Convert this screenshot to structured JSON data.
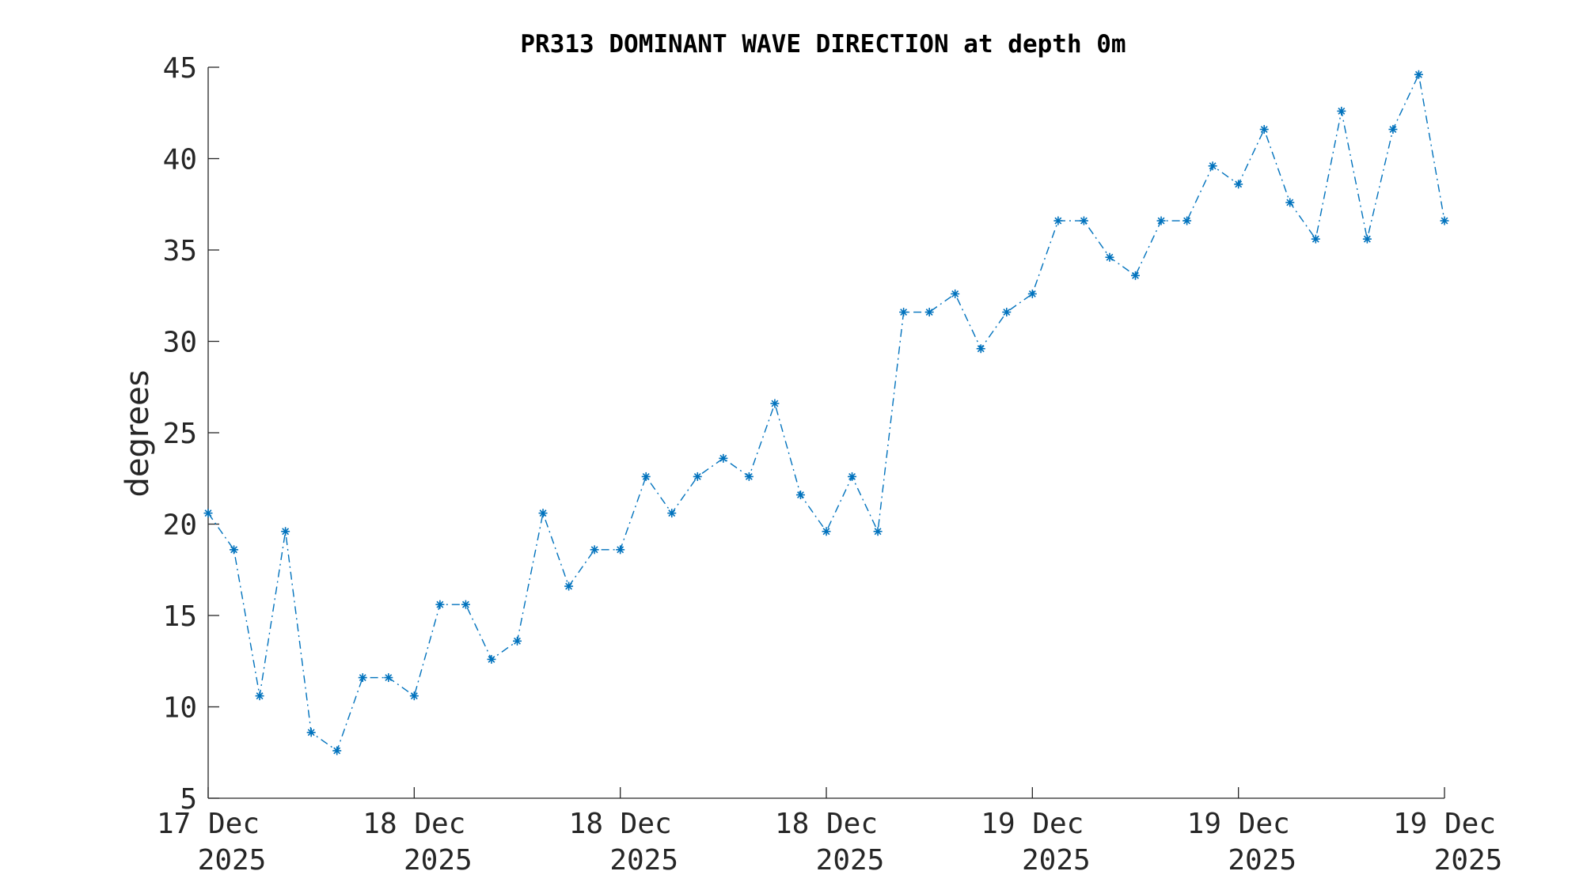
{
  "chart_data": {
    "type": "line",
    "title": "PR313 DOMINANT WAVE DIRECTION at depth 0m",
    "xlabel": "",
    "ylabel": "degrees",
    "ylim": [
      5,
      45
    ],
    "yticks": [
      5,
      10,
      15,
      20,
      25,
      30,
      35,
      40,
      45
    ],
    "xlim": [
      0,
      48
    ],
    "xtick_positions": [
      0,
      8,
      16,
      24,
      32,
      40,
      48
    ],
    "xtick_labels": [
      [
        "17 Dec",
        "2025"
      ],
      [
        "18 Dec",
        "2025"
      ],
      [
        "18 Dec",
        "2025"
      ],
      [
        "18 Dec",
        "2025"
      ],
      [
        "19 Dec",
        "2025"
      ],
      [
        "19 Dec",
        "2025"
      ],
      [
        "19 Dec",
        "2025"
      ]
    ],
    "grid": false,
    "color": "#0072BD",
    "line_style": "dash-dot",
    "marker": "asterisk",
    "series": [
      {
        "x": [
          0,
          1,
          2,
          3,
          4,
          5,
          6,
          7,
          8,
          9,
          10,
          11,
          12,
          13,
          14,
          15,
          16,
          17,
          18,
          19,
          20,
          21,
          22,
          23,
          24,
          25,
          26,
          27,
          28,
          29,
          30,
          31,
          32,
          33,
          34,
          35,
          36,
          37,
          38,
          39,
          40,
          41,
          42,
          43,
          44,
          45,
          46,
          47,
          48
        ],
        "values": [
          20.6,
          18.6,
          10.6,
          19.6,
          8.6,
          7.6,
          11.6,
          11.6,
          10.6,
          15.6,
          15.6,
          12.6,
          13.6,
          20.6,
          16.6,
          18.6,
          18.6,
          22.6,
          20.6,
          22.6,
          23.6,
          22.6,
          26.6,
          21.6,
          19.6,
          22.6,
          19.6,
          31.6,
          31.6,
          32.6,
          29.6,
          31.6,
          32.6,
          36.6,
          36.6,
          34.6,
          33.6,
          36.6,
          36.6,
          39.6,
          38.6,
          41.6,
          37.6,
          35.6,
          42.6,
          35.6,
          41.6,
          44.6,
          36.6
        ]
      }
    ]
  }
}
